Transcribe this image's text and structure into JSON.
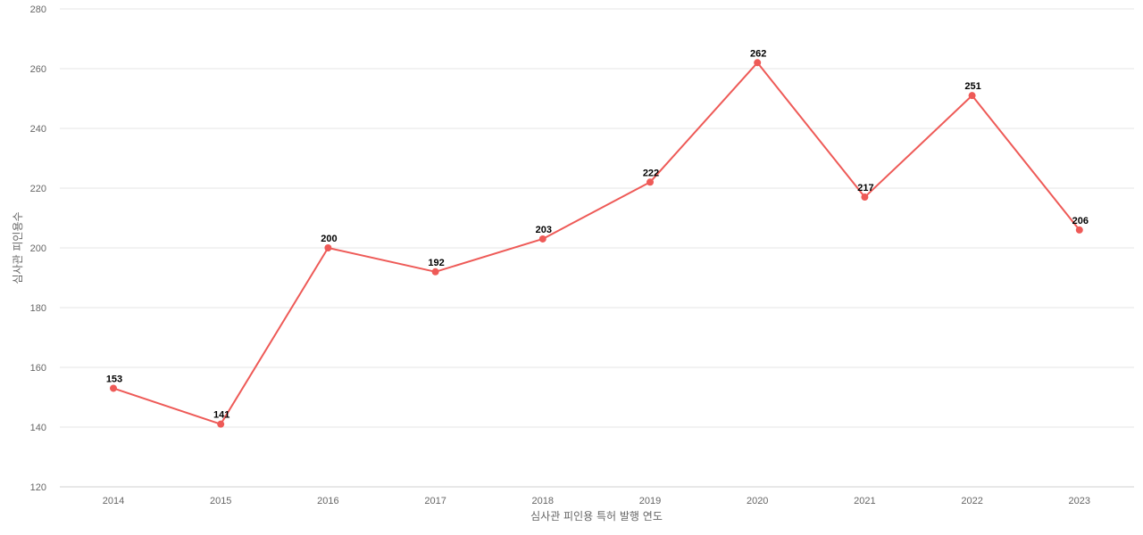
{
  "chart_data": {
    "type": "line",
    "title": "",
    "xlabel": "심사관 피인용 특허 발행 연도",
    "ylabel": "심사관 피인용수",
    "categories": [
      "2014",
      "2015",
      "2016",
      "2017",
      "2018",
      "2019",
      "2020",
      "2021",
      "2022",
      "2023"
    ],
    "series": [
      {
        "values": [
          153,
          141,
          200,
          192,
          203,
          222,
          262,
          217,
          251,
          206
        ],
        "color": "#ee5a57"
      }
    ],
    "ylim": [
      120,
      280
    ],
    "yticks": [
      120,
      140,
      160,
      180,
      200,
      220,
      240,
      260,
      280
    ],
    "grid": true,
    "legend": "none",
    "data_labels": true
  }
}
